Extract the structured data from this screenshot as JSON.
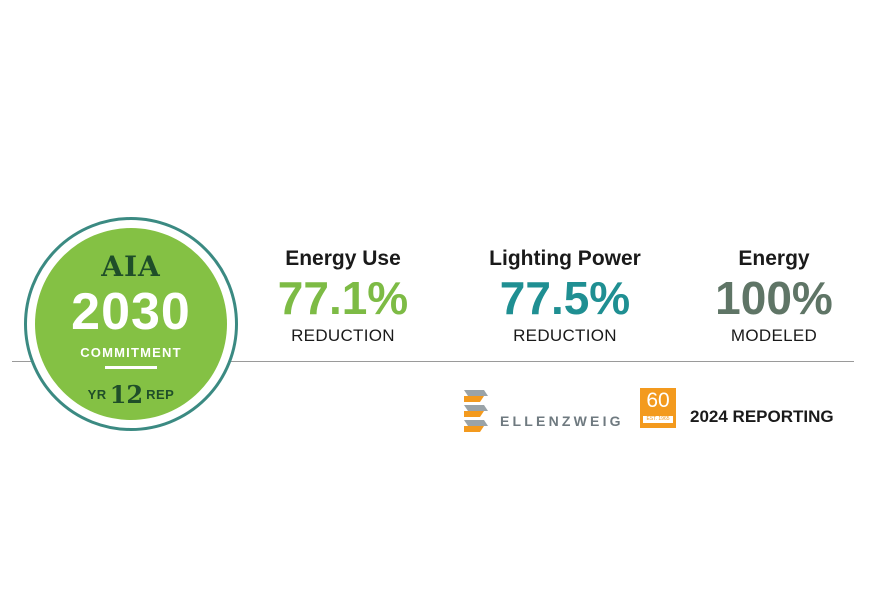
{
  "badge": {
    "org": "AIA",
    "year": "2030",
    "commitment": "COMMITMENT",
    "yr_label": "YR",
    "yr_number": "12",
    "rep_label": "REP"
  },
  "stats": [
    {
      "title": "Energy Use",
      "value": "77.1%",
      "subtitle": "REDUCTION",
      "color": "#7dbb45"
    },
    {
      "title": "Lighting Power",
      "value": "77.5%",
      "subtitle": "REDUCTION",
      "color": "#1f8f92"
    },
    {
      "title": "Energy",
      "value": "100%",
      "subtitle": "MODELED",
      "color": "#5f7566"
    }
  ],
  "footer": {
    "company": "ELLENZWEIG",
    "anniversary": "60",
    "anniversary_est": "EST. 1965",
    "reporting": "2024 REPORTING"
  },
  "colors": {
    "badge_green": "#84c144",
    "badge_ring": "#3b8a82",
    "badge_dark": "#1f4e29",
    "orange": "#f39a1e",
    "logo_gray": "#6f7a80"
  },
  "icons": {
    "company_logo": "ellenzweig-logo-icon"
  }
}
